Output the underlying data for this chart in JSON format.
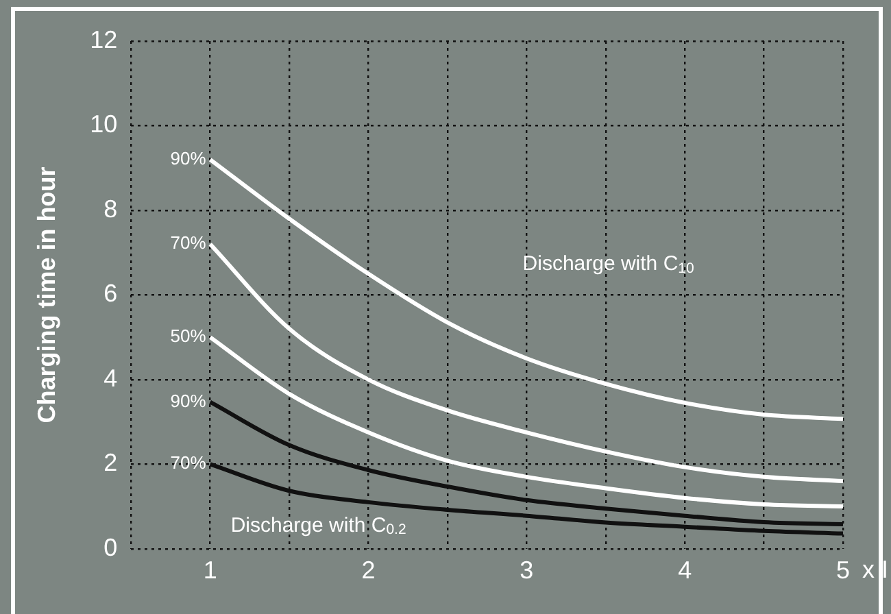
{
  "chart_data": {
    "type": "line",
    "ylabel": "Charging time in hour",
    "xlabel": "x I",
    "x": [
      1,
      1.5,
      2,
      2.5,
      3,
      3.5,
      4,
      4.5,
      5
    ],
    "series": [
      {
        "name": "90%",
        "color": "#ffffff",
        "values": [
          9.2,
          7.8,
          6.5,
          5.35,
          4.5,
          3.9,
          3.45,
          3.17,
          3.07
        ]
      },
      {
        "name": "70%",
        "color": "#ffffff",
        "values": [
          7.2,
          5.2,
          4.0,
          3.27,
          2.75,
          2.3,
          1.93,
          1.7,
          1.6
        ]
      },
      {
        "name": "50%",
        "color": "#ffffff",
        "values": [
          5.0,
          3.66,
          2.75,
          2.08,
          1.7,
          1.43,
          1.2,
          1.05,
          1.0
        ]
      },
      {
        "name": "90%",
        "color": "#111111",
        "values": [
          3.47,
          2.45,
          1.86,
          1.47,
          1.15,
          0.95,
          0.78,
          0.63,
          0.58
        ]
      },
      {
        "name": "70%",
        "color": "#111111",
        "values": [
          2.0,
          1.37,
          1.1,
          0.92,
          0.78,
          0.62,
          0.52,
          0.42,
          0.36
        ]
      }
    ],
    "annotations": [
      "Discharge with C$_{10}$",
      "Discharge with C$_{0.2}$"
    ],
    "xlim": [
      0.5,
      5
    ],
    "ylim": [
      0,
      12
    ],
    "xticks": [
      {
        "value": 0.5,
        "label": null
      },
      1,
      {
        "value": 1.5,
        "label": null
      },
      2,
      {
        "value": 2.5,
        "label": null
      },
      3,
      {
        "value": 3.5,
        "label": null
      },
      4,
      {
        "value": 4.5,
        "label": null
      },
      5
    ],
    "yticks": [
      0,
      2,
      4,
      6,
      8,
      10,
      12
    ],
    "grid": true,
    "legend": false,
    "marker": "none",
    "line_style": "solid"
  }
}
